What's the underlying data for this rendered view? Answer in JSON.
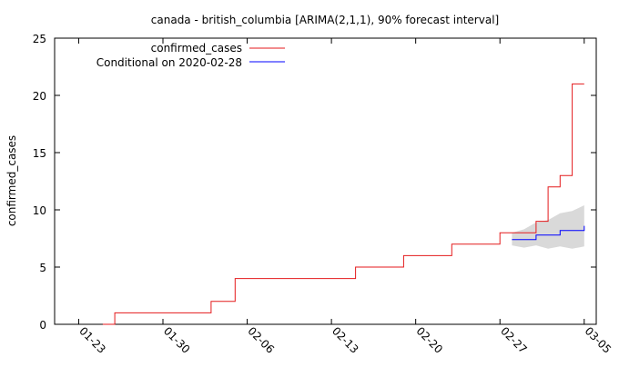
{
  "chart_data": {
    "type": "line",
    "title": "canada - british_columbia [ARIMA(2,1,1), 90% forecast interval]",
    "xlabel": "",
    "ylabel": "confirmed_cases",
    "xlim": [
      "2020-01-21",
      "2020-03-06"
    ],
    "ylim": [
      0,
      25
    ],
    "yticks": [
      0,
      5,
      10,
      15,
      20,
      25
    ],
    "xticks": [
      {
        "date": "2020-01-23",
        "label": "01-23"
      },
      {
        "date": "2020-01-30",
        "label": "01-30"
      },
      {
        "date": "2020-02-06",
        "label": "02-06"
      },
      {
        "date": "2020-02-13",
        "label": "02-13"
      },
      {
        "date": "2020-02-20",
        "label": "02-20"
      },
      {
        "date": "2020-02-27",
        "label": "02-27"
      },
      {
        "date": "2020-03-05",
        "label": "03-05"
      }
    ],
    "grid": false,
    "legend_position": "top-left",
    "series": [
      {
        "name": "confirmed_cases",
        "color": "#e41a1c",
        "x": [
          "2020-01-25",
          "2020-01-26",
          "2020-01-27",
          "2020-01-28",
          "2020-01-29",
          "2020-01-30",
          "2020-01-31",
          "2020-02-01",
          "2020-02-02",
          "2020-02-03",
          "2020-02-04",
          "2020-02-05",
          "2020-02-06",
          "2020-02-07",
          "2020-02-08",
          "2020-02-09",
          "2020-02-10",
          "2020-02-11",
          "2020-02-12",
          "2020-02-13",
          "2020-02-14",
          "2020-02-15",
          "2020-02-16",
          "2020-02-17",
          "2020-02-18",
          "2020-02-19",
          "2020-02-20",
          "2020-02-21",
          "2020-02-22",
          "2020-02-23",
          "2020-02-24",
          "2020-02-25",
          "2020-02-26",
          "2020-02-27",
          "2020-02-28",
          "2020-02-29",
          "2020-03-01",
          "2020-03-02",
          "2020-03-03",
          "2020-03-04",
          "2020-03-05"
        ],
        "y": [
          0,
          1,
          1,
          1,
          1,
          1,
          1,
          1,
          1,
          2,
          2,
          4,
          4,
          4,
          4,
          4,
          4,
          4,
          4,
          4,
          4,
          5,
          5,
          5,
          5,
          6,
          6,
          6,
          6,
          7,
          7,
          7,
          7,
          8,
          8,
          8,
          9,
          12,
          13,
          21,
          21
        ]
      },
      {
        "name": "Conditional on 2020-02-28",
        "color": "#0000ff",
        "x": [
          "2020-02-28",
          "2020-02-29",
          "2020-03-01",
          "2020-03-02",
          "2020-03-03",
          "2020-03-04",
          "2020-03-05"
        ],
        "y": [
          7.4,
          7.4,
          7.8,
          7.8,
          8.2,
          8.2,
          8.6
        ]
      }
    ],
    "interval": {
      "name": "90% forecast interval",
      "color": "#d9d9d9",
      "x": [
        "2020-02-28",
        "2020-02-29",
        "2020-03-01",
        "2020-03-02",
        "2020-03-03",
        "2020-03-04",
        "2020-03-05"
      ],
      "lower": [
        6.9,
        6.7,
        6.9,
        6.6,
        6.8,
        6.6,
        6.8
      ],
      "upper": [
        8.0,
        8.3,
        8.9,
        9.1,
        9.7,
        9.9,
        10.4
      ]
    }
  }
}
